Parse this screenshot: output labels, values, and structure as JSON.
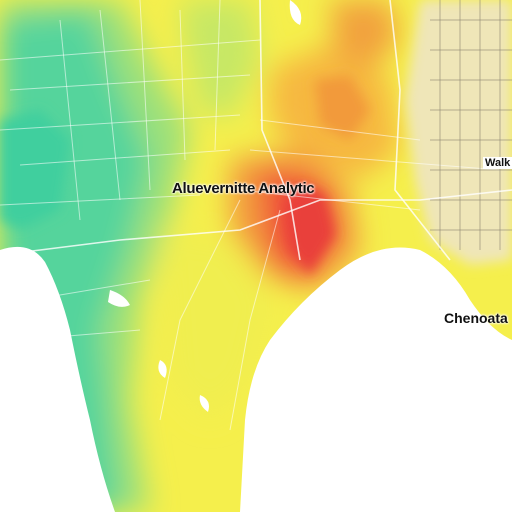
{
  "map": {
    "labels": {
      "center": "Aluevernitte Analytic",
      "right": "Chenoata",
      "edge": "Walk"
    },
    "legend_colors": {
      "low": "#4cd3a2",
      "mid_low": "#8fe07a",
      "mid": "#f2ee4a",
      "mid_high": "#f7b53a",
      "high": "#ef4a3a",
      "urban": "#efe6b8",
      "water": "#ffffff"
    }
  }
}
